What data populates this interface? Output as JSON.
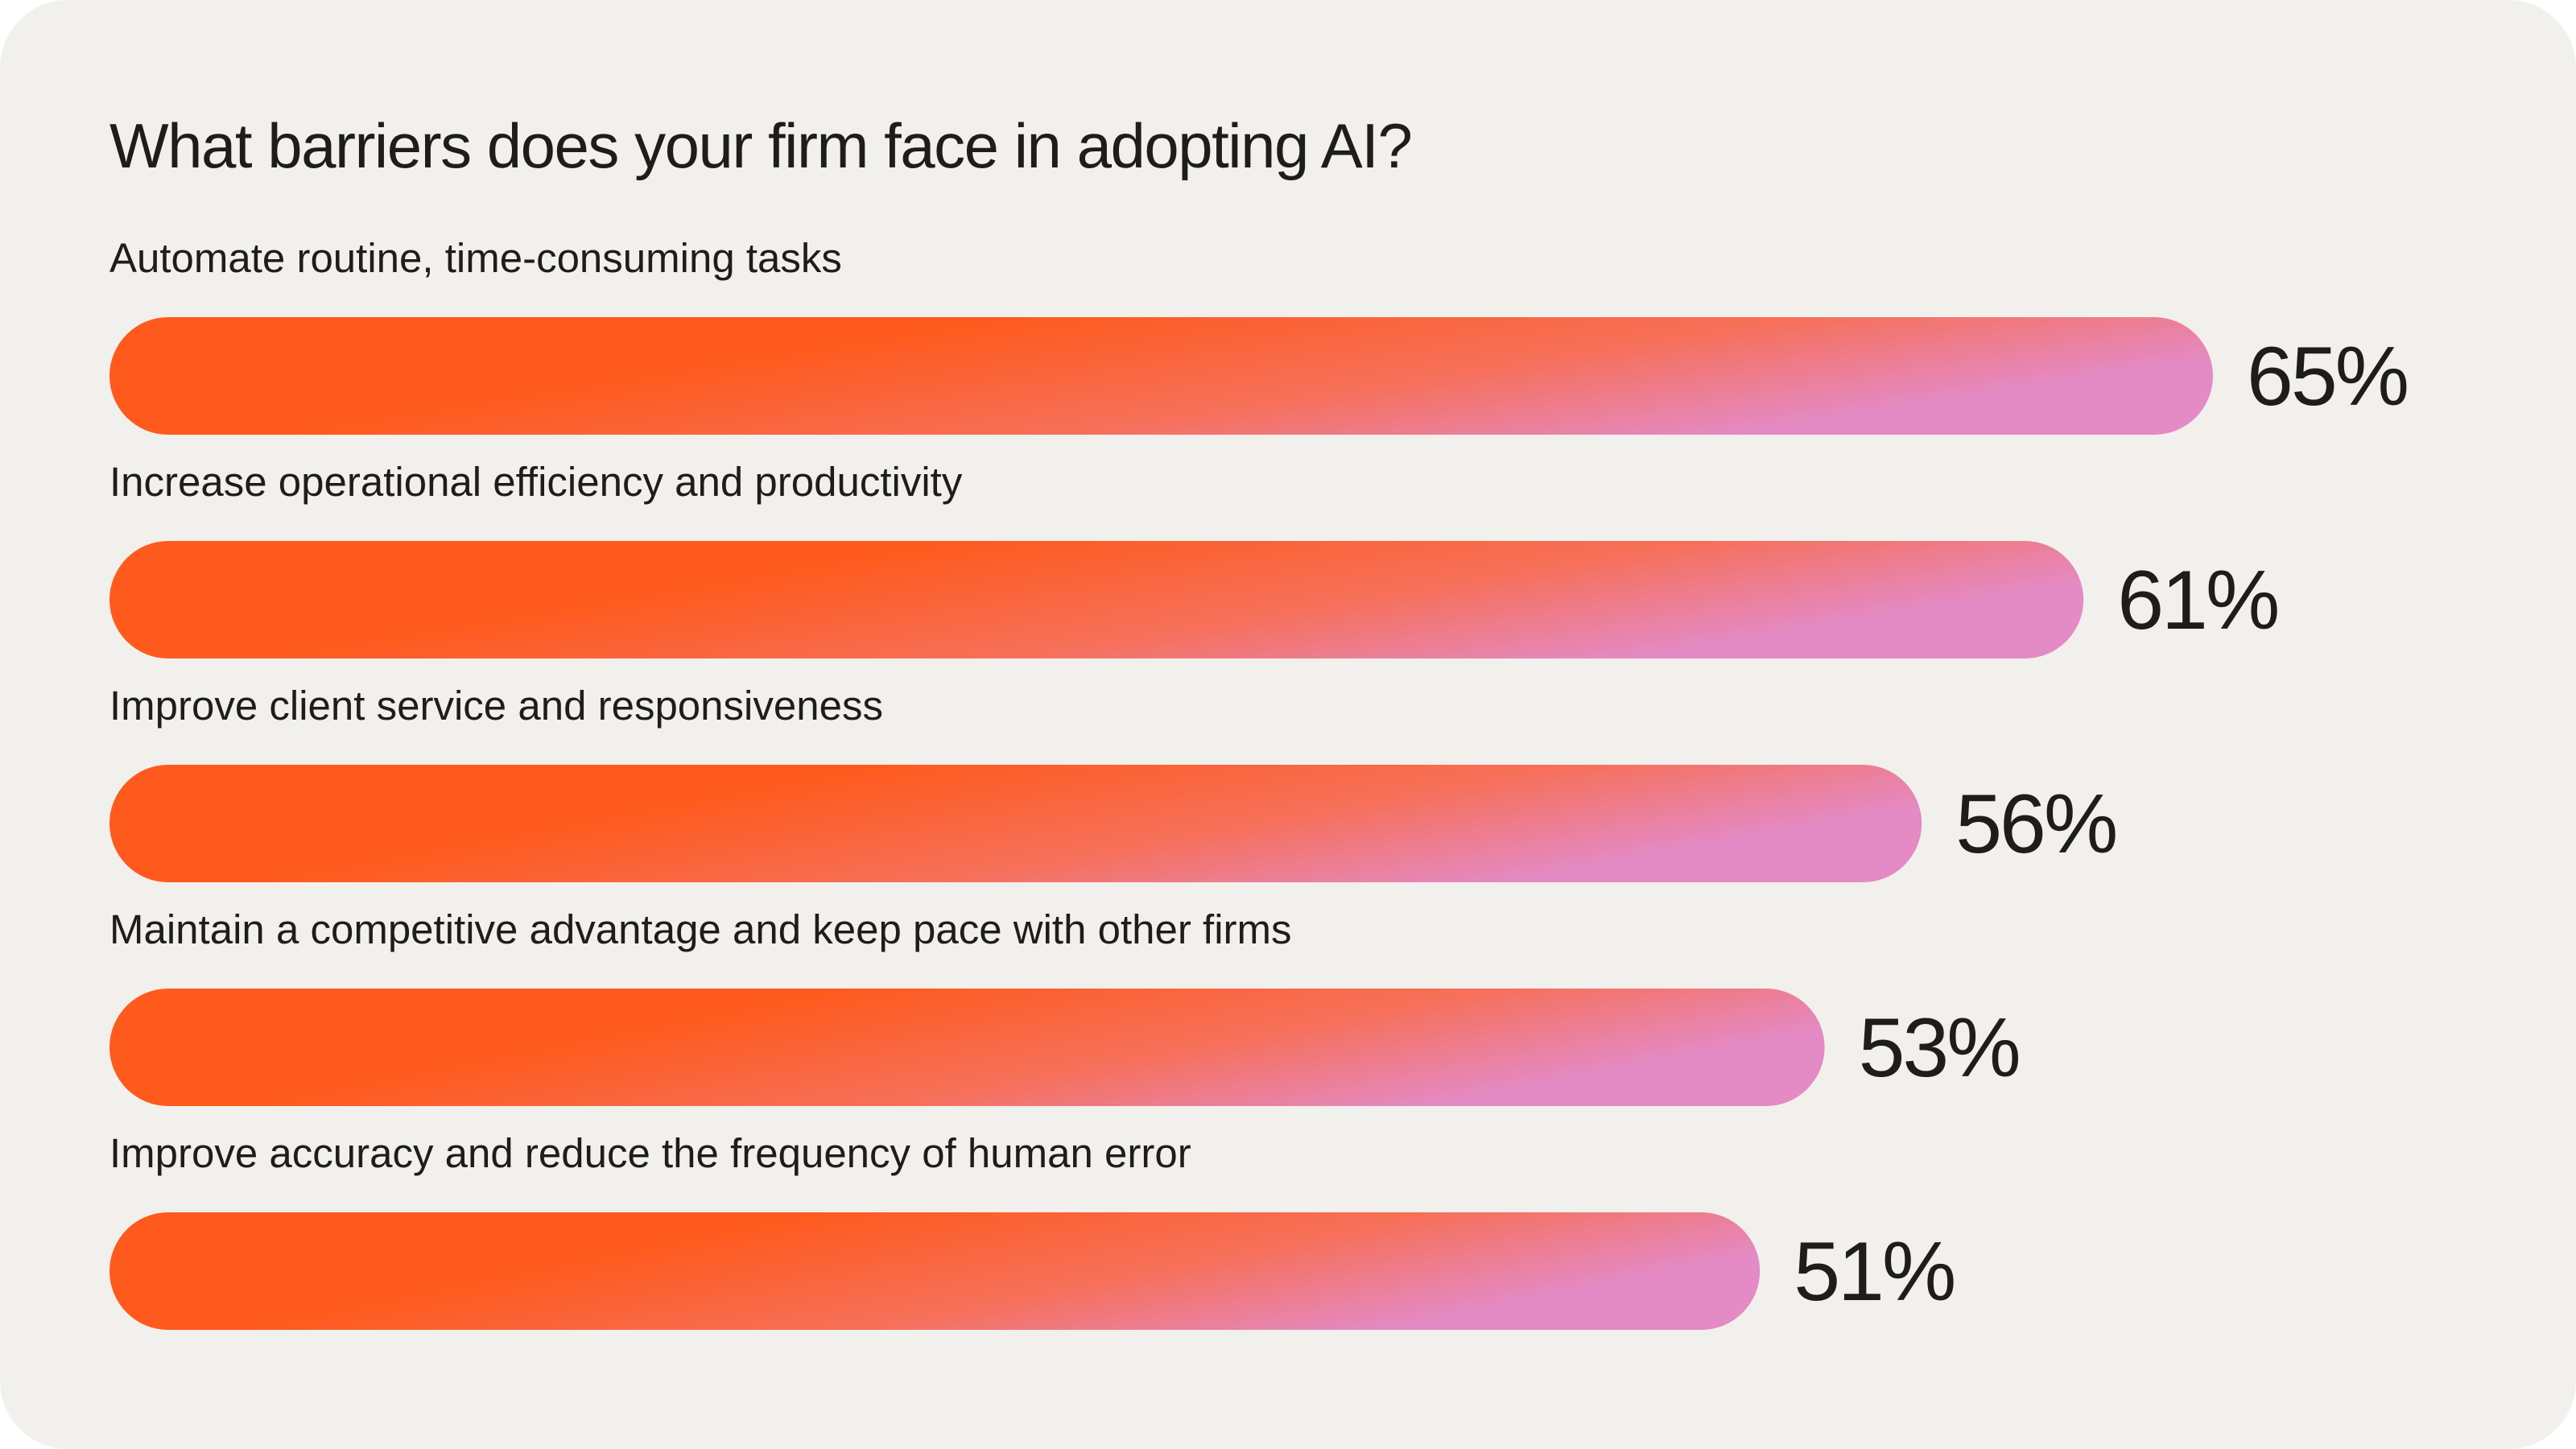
{
  "chart_data": {
    "type": "bar",
    "orientation": "horizontal",
    "title": "What barriers does your firm face in adopting AI?",
    "categories": [
      "Automate routine, time-consuming tasks",
      "Increase operational efficiency and productivity",
      "Improve client service and responsiveness",
      "Maintain a competitive advantage and keep pace with other firms",
      "Improve accuracy and reduce the frequency of human error"
    ],
    "values": [
      65,
      61,
      56,
      53,
      51
    ],
    "value_labels": [
      "65%",
      "61%",
      "56%",
      "53%",
      "51%"
    ],
    "unit": "%",
    "grid": false,
    "legend": "none",
    "colors": {
      "background": "#f1f0ed",
      "bar_gradient_start": "#fe5a1d",
      "bar_gradient_mid": "#f6705a",
      "bar_gradient_end": "#e48ac4",
      "text": "#1f1d1b"
    }
  }
}
